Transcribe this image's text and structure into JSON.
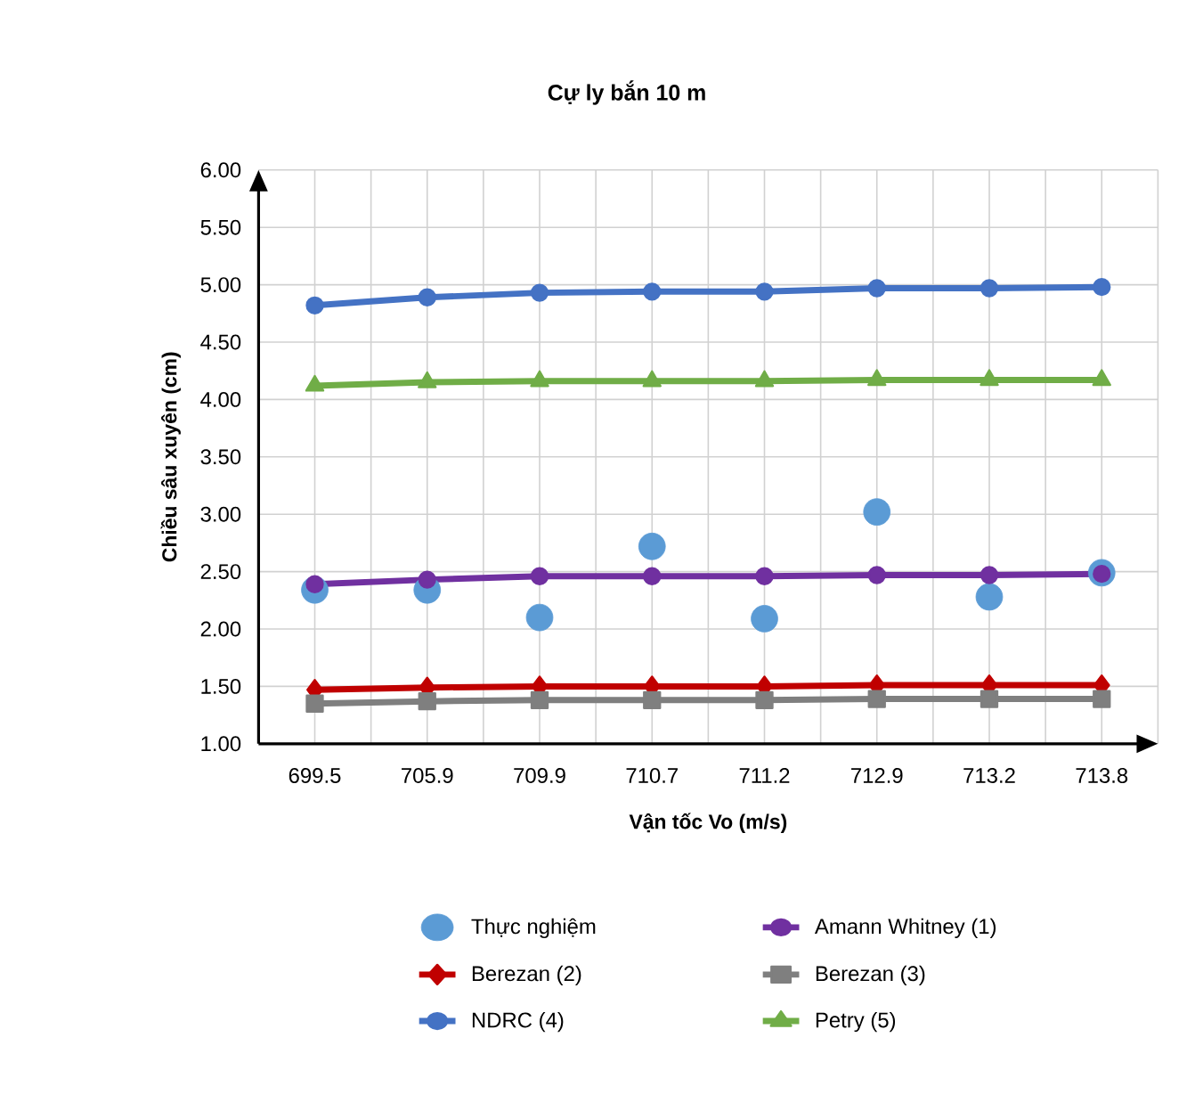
{
  "chart_data": {
    "type": "line",
    "title": "Cự ly bắn 10 m",
    "xlabel": "Vận tốc Vo (m/s)",
    "ylabel": "Chiều sâu xuyên (cm)",
    "categories": [
      "699.5",
      "705.9",
      "709.9",
      "710.7",
      "711.2",
      "712.9",
      "713.2",
      "713.8"
    ],
    "ylim": [
      1.0,
      6.0
    ],
    "yticks": [
      {
        "value": 1.0,
        "label": "1.00"
      },
      {
        "value": 1.5,
        "label": "1.50"
      },
      {
        "value": 2.0,
        "label": "2.00"
      },
      {
        "value": 2.5,
        "label": "2.50"
      },
      {
        "value": 3.0,
        "label": "3.00"
      },
      {
        "value": 3.5,
        "label": "3.50"
      },
      {
        "value": 4.0,
        "label": "4.00"
      },
      {
        "value": 4.5,
        "label": "4.50"
      },
      {
        "value": 5.0,
        "label": "5.00"
      },
      {
        "value": 5.5,
        "label": "5.50"
      },
      {
        "value": 6.0,
        "label": "6.00"
      }
    ],
    "grid": true,
    "legend": "bottom",
    "series": [
      {
        "name": "Thực nghiệm",
        "type": "scatter",
        "marker": "circle",
        "color": "#5b9bd5",
        "values": [
          2.34,
          2.34,
          2.1,
          2.72,
          2.09,
          3.02,
          2.28,
          2.49
        ]
      },
      {
        "name": "Amann Whitney (1)",
        "marker": "circle",
        "color": "#7030a0",
        "values": [
          2.39,
          2.43,
          2.46,
          2.46,
          2.46,
          2.47,
          2.47,
          2.48
        ]
      },
      {
        "name": "Berezan (2)",
        "marker": "diamond",
        "color": "#c00000",
        "values": [
          1.47,
          1.49,
          1.5,
          1.5,
          1.5,
          1.51,
          1.51,
          1.51
        ]
      },
      {
        "name": "Berezan (3)",
        "marker": "square",
        "color": "#7f7f7f",
        "values": [
          1.35,
          1.37,
          1.38,
          1.38,
          1.38,
          1.39,
          1.39,
          1.39
        ]
      },
      {
        "name": "NDRC (4)",
        "marker": "circle",
        "color": "#4472c4",
        "values": [
          4.82,
          4.89,
          4.93,
          4.94,
          4.94,
          4.97,
          4.97,
          4.98
        ]
      },
      {
        "name": "Petry (5)",
        "marker": "triangle",
        "color": "#70ad47",
        "values": [
          4.12,
          4.15,
          4.16,
          4.16,
          4.16,
          4.17,
          4.17,
          4.17
        ]
      }
    ]
  }
}
